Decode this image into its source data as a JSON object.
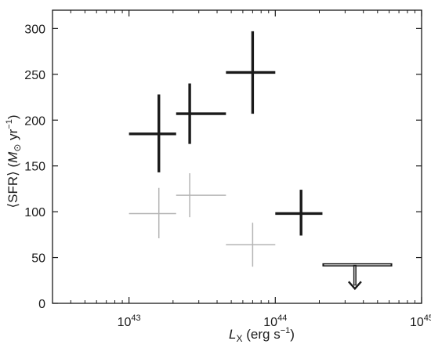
{
  "chart_data": {
    "type": "scatter",
    "x_scale": "log",
    "xlim": [
      3e+42,
      1e+45
    ],
    "ylim": [
      0,
      320
    ],
    "grid": false,
    "legend": "none",
    "xlabel": {
      "main": "L",
      "sub": "X",
      "unit_pre": " (erg s",
      "unit_sup": "−1",
      "unit_post": ")"
    },
    "ylabel": {
      "pre": "⟨SFR⟩ (",
      "M": "M",
      "sun": "⊙",
      "mid": " yr",
      "sup": "−1",
      "post": ")"
    },
    "y_ticks": [
      0,
      50,
      100,
      150,
      200,
      250,
      300
    ],
    "y_tick_labels": [
      "0",
      "50",
      "100",
      "150",
      "200",
      "250",
      "300"
    ],
    "x_ticks": [
      1e+43,
      1e+44,
      1e+45
    ],
    "x_tick_labels": [
      {
        "base": "10",
        "exp": "43"
      },
      {
        "base": "10",
        "exp": "44"
      },
      {
        "base": "10",
        "exp": "45"
      }
    ],
    "series": [
      {
        "color": "#1a1a1a",
        "points": [
          {
            "x": 1.6e+43,
            "y": 185,
            "x_low": 1e+43,
            "x_high": 2.1e+43,
            "y_low": 143,
            "y_high": 228
          },
          {
            "x": 2.6e+43,
            "y": 207,
            "x_low": 2.1e+43,
            "x_high": 4.6e+43,
            "y_low": 174,
            "y_high": 240
          },
          {
            "x": 7e+43,
            "y": 252,
            "x_low": 4.6e+43,
            "x_high": 1e+44,
            "y_low": 207,
            "y_high": 297
          },
          {
            "x": 1.5e+44,
            "y": 98,
            "x_low": 1e+44,
            "x_high": 2.1e+44,
            "y_low": 74,
            "y_high": 124
          }
        ]
      },
      {
        "color": "#b4b4b4",
        "points": [
          {
            "x": 1.6e+43,
            "y": 98,
            "x_low": 1e+43,
            "x_high": 2.1e+43,
            "y_low": 71,
            "y_high": 126
          },
          {
            "x": 2.6e+43,
            "y": 118,
            "x_low": 2.1e+43,
            "x_high": 4.6e+43,
            "y_low": 94,
            "y_high": 142
          },
          {
            "x": 7e+43,
            "y": 64,
            "x_low": 4.6e+43,
            "x_high": 1e+44,
            "y_low": 40,
            "y_high": 88
          }
        ]
      },
      {
        "color": "#1a1a1a",
        "upper_limit": true,
        "points": [
          {
            "x": 3.5e+44,
            "y": 42,
            "x_low": 2.1e+44,
            "x_high": 6.3e+44,
            "arrow_to": 16
          }
        ]
      }
    ]
  }
}
